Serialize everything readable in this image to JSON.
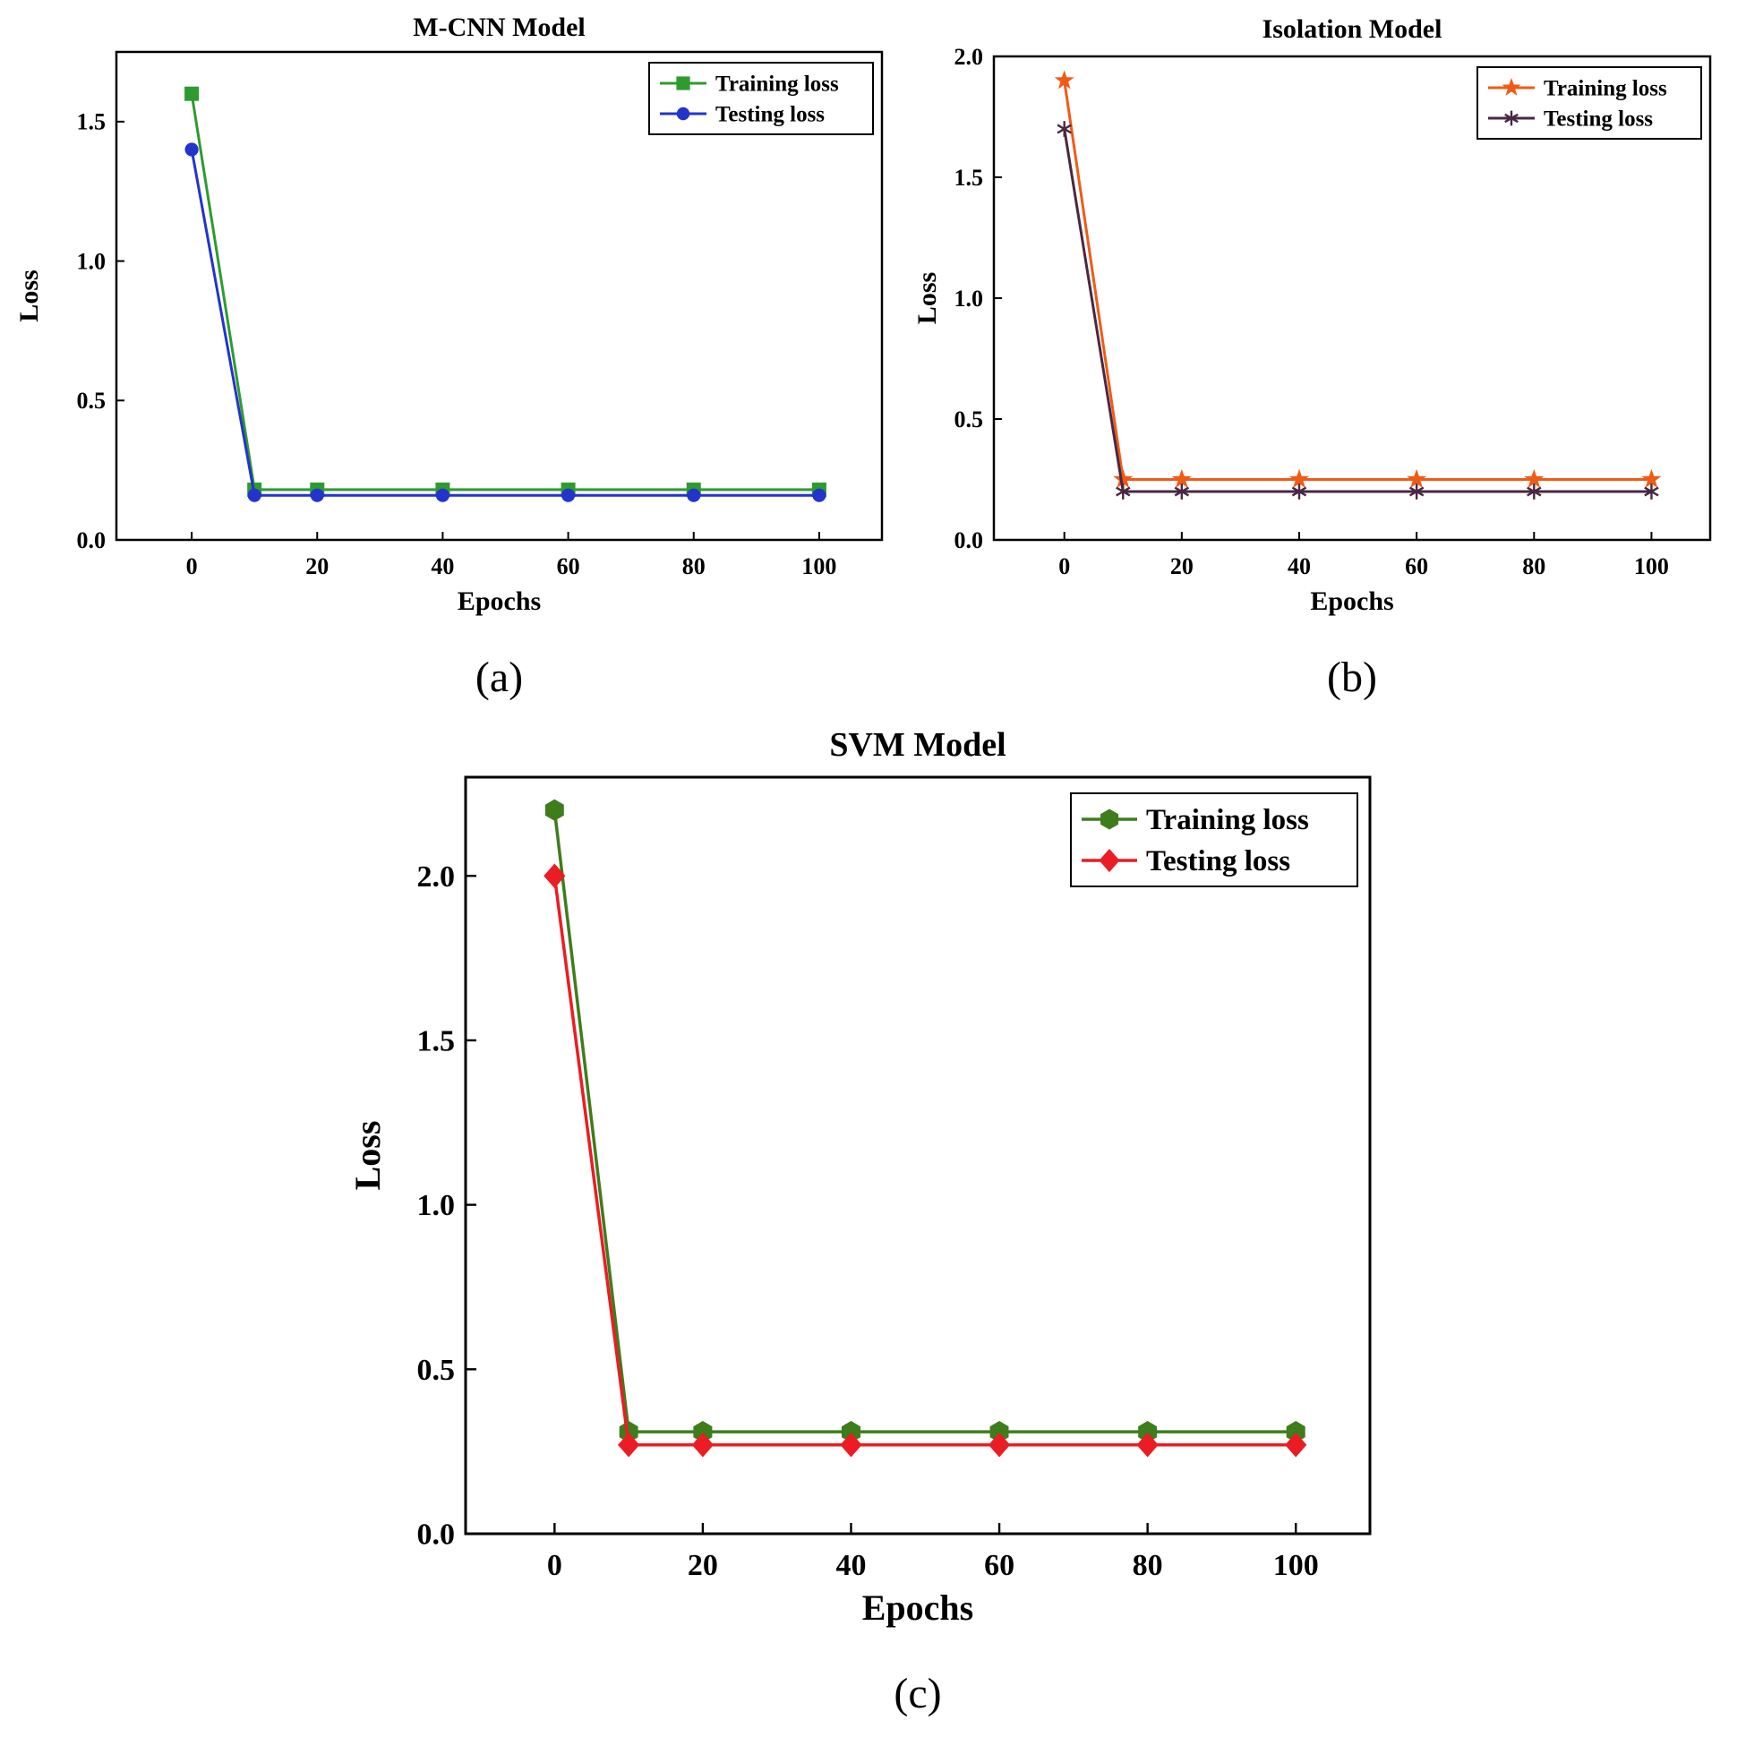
{
  "panels": [
    {
      "caption": "(a)"
    },
    {
      "caption": "(b)"
    },
    {
      "caption": "(c)"
    }
  ],
  "chart_data": [
    {
      "type": "line",
      "title": "M-CNN Model",
      "xlabel": "Epochs",
      "ylabel": "Loss",
      "xlim": [
        -12,
        110
      ],
      "ylim": [
        0,
        1.75
      ],
      "xticks": [
        0,
        20,
        40,
        60,
        80,
        100
      ],
      "yticks": [
        0,
        0.5,
        1.0,
        1.5
      ],
      "x": [
        0,
        10,
        20,
        40,
        60,
        80,
        100
      ],
      "grid": false,
      "legend_position": "top-right",
      "series": [
        {
          "name": "Training loss",
          "color": "#2e9b2e",
          "marker": "square",
          "values": [
            1.6,
            0.18,
            0.18,
            0.18,
            0.18,
            0.18,
            0.18
          ]
        },
        {
          "name": "Testing loss",
          "color": "#2234cc",
          "marker": "circle",
          "values": [
            1.4,
            0.16,
            0.16,
            0.16,
            0.16,
            0.16,
            0.16
          ]
        }
      ]
    },
    {
      "type": "line",
      "title": "Isolation Model",
      "xlabel": "Epochs",
      "ylabel": "Loss",
      "xlim": [
        -12,
        110
      ],
      "ylim": [
        0,
        2.0
      ],
      "xticks": [
        0,
        20,
        40,
        60,
        80,
        100
      ],
      "yticks": [
        0,
        0.5,
        1.0,
        1.5,
        2.0
      ],
      "x": [
        0,
        10,
        20,
        40,
        60,
        80,
        100
      ],
      "grid": false,
      "legend_position": "top-right",
      "series": [
        {
          "name": "Training loss",
          "color": "#ef5b17",
          "marker": "star",
          "values": [
            1.9,
            0.25,
            0.25,
            0.25,
            0.25,
            0.25,
            0.25
          ]
        },
        {
          "name": "Testing loss",
          "color": "#4a2742",
          "marker": "asterisk",
          "values": [
            1.7,
            0.2,
            0.2,
            0.2,
            0.2,
            0.2,
            0.2
          ]
        }
      ]
    },
    {
      "type": "line",
      "title": "SVM Model",
      "xlabel": "Epochs",
      "ylabel": "Loss",
      "xlim": [
        -12,
        110
      ],
      "ylim": [
        0,
        2.3
      ],
      "xticks": [
        0,
        20,
        40,
        60,
        80,
        100
      ],
      "yticks": [
        0,
        0.5,
        1.0,
        1.5,
        2.0
      ],
      "x": [
        0,
        10,
        20,
        40,
        60,
        80,
        100
      ],
      "grid": false,
      "legend_position": "top-right",
      "series": [
        {
          "name": "Training loss",
          "color": "#3e7d1c",
          "marker": "hexagon",
          "values": [
            2.2,
            0.31,
            0.31,
            0.31,
            0.31,
            0.31,
            0.31
          ]
        },
        {
          "name": "Testing loss",
          "color": "#ec1c24",
          "marker": "diamond",
          "values": [
            2.0,
            0.27,
            0.27,
            0.27,
            0.27,
            0.27,
            0.27
          ]
        }
      ]
    }
  ]
}
